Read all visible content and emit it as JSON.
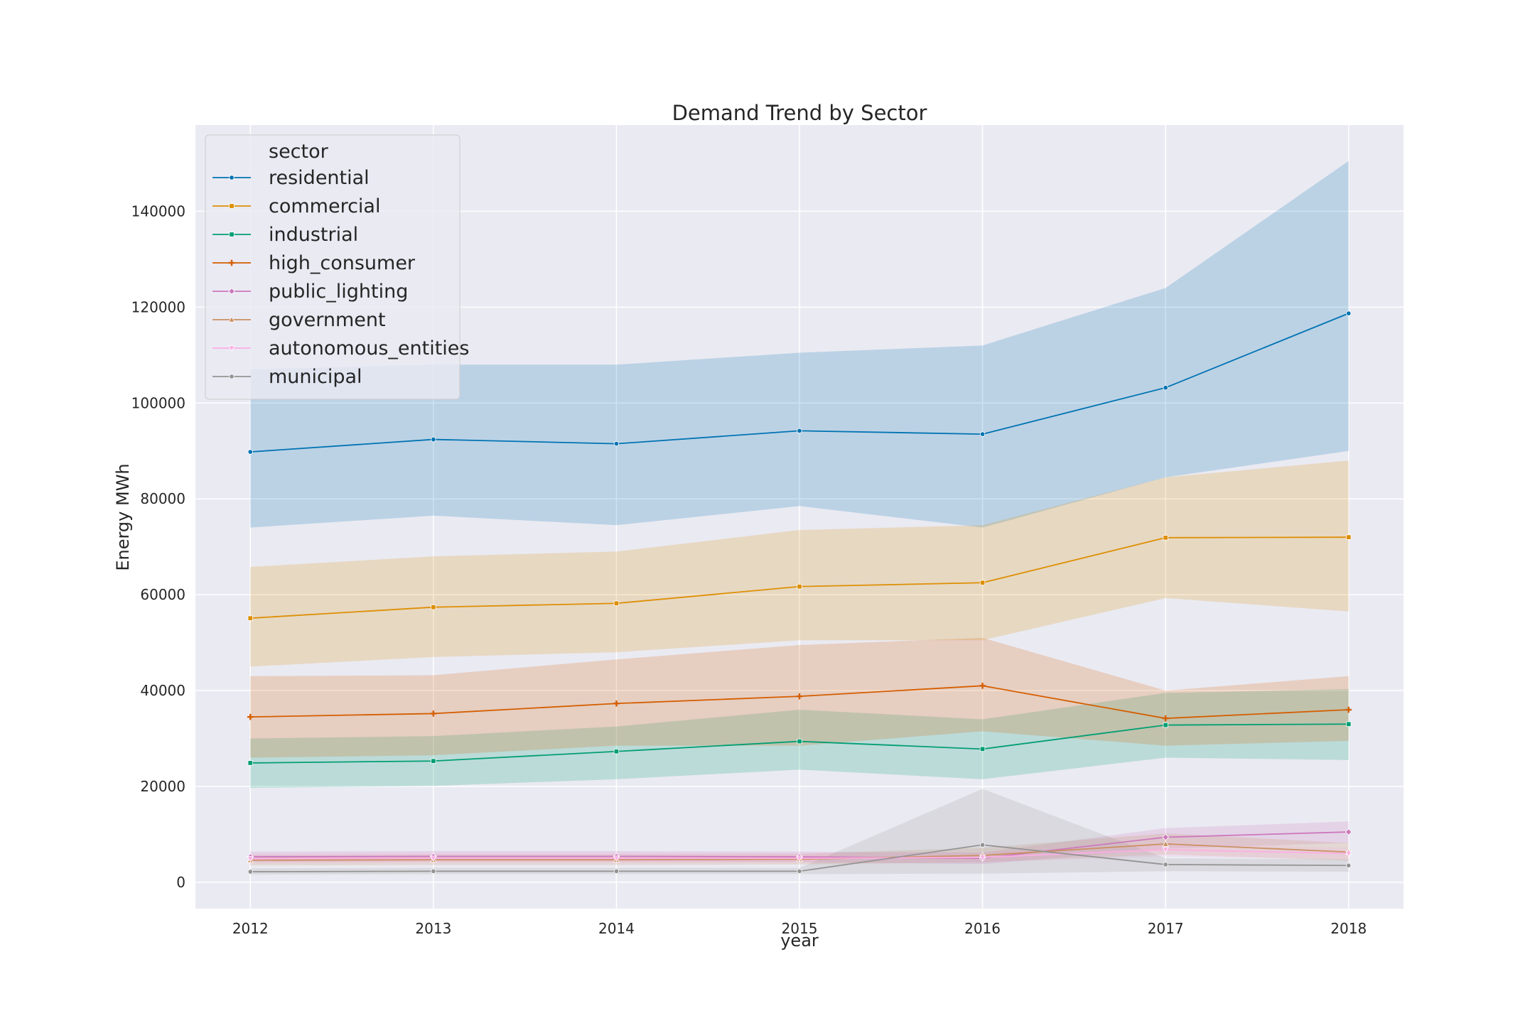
{
  "chart_data": {
    "type": "line",
    "title": "Demand Trend by Sector",
    "xlabel": "year",
    "ylabel": "Energy MWh",
    "x": [
      2012,
      2013,
      2014,
      2015,
      2016,
      2017,
      2018
    ],
    "ylim": [
      -5500,
      158000
    ],
    "yticks": [
      0,
      20000,
      40000,
      60000,
      80000,
      100000,
      120000,
      140000
    ],
    "grid": true,
    "legend_title": "sector",
    "legend_position": "upper-left",
    "series": [
      {
        "name": "residential",
        "color": "#0173b2",
        "marker": "circle",
        "values": [
          89800,
          92400,
          91500,
          94200,
          93500,
          103200,
          118700
        ],
        "lower": [
          74000,
          76500,
          74500,
          78500,
          74000,
          84500,
          90000
        ],
        "upper": [
          107000,
          108000,
          108000,
          110500,
          112000,
          124000,
          150500
        ]
      },
      {
        "name": "commercial",
        "color": "#de8f05",
        "marker": "square",
        "values": [
          55100,
          57400,
          58200,
          61700,
          62500,
          71900,
          72000
        ],
        "lower": [
          45000,
          47000,
          48000,
          50500,
          50500,
          59300,
          56500
        ],
        "upper": [
          65800,
          68000,
          69000,
          73500,
          74500,
          84500,
          88000
        ]
      },
      {
        "name": "industrial",
        "color": "#029e73",
        "marker": "square",
        "values": [
          24900,
          25300,
          27300,
          29400,
          27800,
          32800,
          33000
        ],
        "lower": [
          19700,
          20100,
          21500,
          23500,
          21500,
          26000,
          25500
        ],
        "upper": [
          30000,
          30500,
          32500,
          36000,
          34000,
          39500,
          40300
        ]
      },
      {
        "name": "high_consumer",
        "color": "#d55e00",
        "marker": "plus",
        "values": [
          34500,
          35200,
          37300,
          38800,
          41000,
          34200,
          36000
        ],
        "lower": [
          26000,
          26500,
          28500,
          28500,
          31500,
          28500,
          29500
        ],
        "upper": [
          43000,
          43200,
          46500,
          49500,
          51000,
          40000,
          43000
        ]
      },
      {
        "name": "public_lighting",
        "color": "#cc78bc",
        "marker": "diamond",
        "values": [
          5300,
          5400,
          5400,
          5300,
          5000,
          9400,
          10500
        ],
        "lower": [
          4200,
          4300,
          4300,
          4200,
          3800,
          7000,
          8200
        ],
        "upper": [
          6400,
          6500,
          6500,
          6400,
          6200,
          11300,
          12700
        ]
      },
      {
        "name": "government",
        "color": "#ca9161",
        "marker": "triangle-up",
        "values": [
          4600,
          4700,
          4700,
          4800,
          5600,
          8000,
          6300
        ],
        "lower": [
          3500,
          3600,
          3600,
          3700,
          4200,
          5800,
          4500
        ],
        "upper": [
          5700,
          5800,
          5800,
          5900,
          7200,
          10200,
          8200
        ]
      },
      {
        "name": "autonomous_entities",
        "color": "#fbafe4",
        "marker": "triangle-down",
        "values": [
          4900,
          5000,
          5000,
          5000,
          5200,
          6800,
          6000
        ],
        "lower": [
          3900,
          4000,
          4000,
          4000,
          4100,
          5400,
          4800
        ],
        "upper": [
          5900,
          6000,
          6000,
          6000,
          6300,
          8200,
          7200
        ]
      },
      {
        "name": "municipal",
        "color": "#949494",
        "marker": "circle",
        "values": [
          2200,
          2300,
          2300,
          2300,
          7800,
          3700,
          3500
        ],
        "lower": [
          1600,
          1700,
          1700,
          1700,
          1800,
          2300,
          2200
        ],
        "upper": [
          2900,
          3000,
          3000,
          3000,
          19500,
          5000,
          4800
        ]
      }
    ]
  }
}
